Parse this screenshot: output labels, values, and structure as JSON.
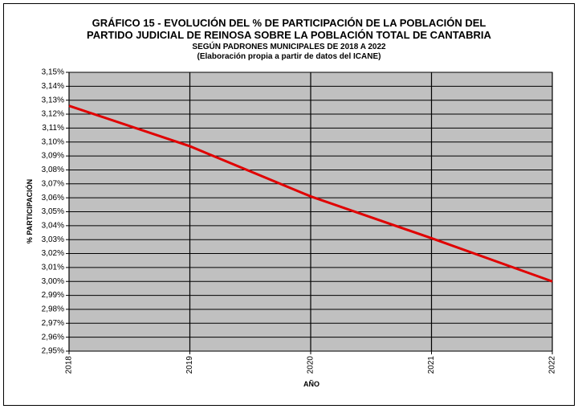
{
  "chart_data": {
    "type": "line",
    "title": [
      "GRÁFICO 15 - EVOLUCIÓN DEL % DE PARTICIPACIÓN DE LA POBLACIÓN DEL",
      "PARTIDO JUDICIAL DE REINOSA SOBRE LA POBLACIÓN TOTAL DE CANTABRIA"
    ],
    "subtitle": [
      "SEGÚN PADRONES MUNICIPALES DE 2018 A 2022",
      "(Elaboración propia a partir de datos del ICANE)"
    ],
    "x_label": "AÑO",
    "y_label": "% PARTICIPACIÓN",
    "categories": [
      "2018",
      "2019",
      "2020",
      "2021",
      "2022"
    ],
    "series": [
      {
        "color": "#e00000",
        "values": [
          3.126,
          3.097,
          3.061,
          3.031,
          3.0
        ]
      }
    ],
    "ylim": [
      2.95,
      3.15
    ],
    "yticks": [
      {
        "value": 2.95,
        "label": "2,95%"
      },
      {
        "value": 2.96,
        "label": "2,96%"
      },
      {
        "value": 2.97,
        "label": "2,97%"
      },
      {
        "value": 2.98,
        "label": "2,98%"
      },
      {
        "value": 2.99,
        "label": "2,99%"
      },
      {
        "value": 3.0,
        "label": "3,00%"
      },
      {
        "value": 3.01,
        "label": "3,01%"
      },
      {
        "value": 3.02,
        "label": "3,02%"
      },
      {
        "value": 3.03,
        "label": "3,03%"
      },
      {
        "value": 3.04,
        "label": "3,04%"
      },
      {
        "value": 3.05,
        "label": "3,05%"
      },
      {
        "value": 3.06,
        "label": "3,06%"
      },
      {
        "value": 3.07,
        "label": "3,07%"
      },
      {
        "value": 3.08,
        "label": "3,08%"
      },
      {
        "value": 3.09,
        "label": "3,09%"
      },
      {
        "value": 3.1,
        "label": "3,10%"
      },
      {
        "value": 3.11,
        "label": "3,11%"
      },
      {
        "value": 3.12,
        "label": "3,12%"
      },
      {
        "value": 3.13,
        "label": "3,13%"
      },
      {
        "value": 3.14,
        "label": "3,14%"
      },
      {
        "value": 3.15,
        "label": "3,15%"
      }
    ],
    "grid": true,
    "plot_background": "#c0c0c0"
  }
}
